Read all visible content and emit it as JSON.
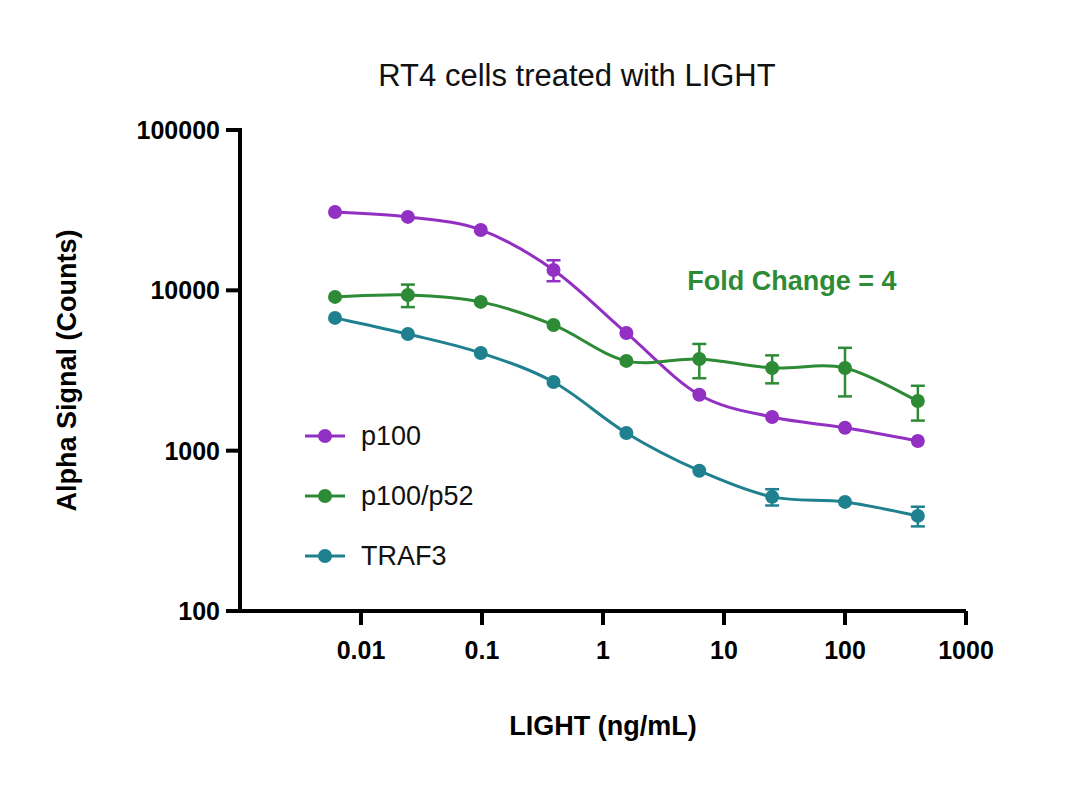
{
  "chart_data": {
    "type": "line",
    "title": "RT4 cells treated with LIGHT",
    "x_label": "LIGHT (ng/mL)",
    "y_label": "Alpha Signal (Counts)",
    "annotations": [
      {
        "text": "Fold Change = 4",
        "color": "#2e8b35"
      }
    ],
    "x": [
      0.0061,
      0.0244,
      0.0977,
      0.39,
      1.56,
      6.25,
      25,
      100,
      400
    ],
    "series": [
      {
        "name": "p100",
        "color": "#9330c4",
        "marker": "circle",
        "values": [
          30800,
          28700,
          23800,
          13400,
          5420,
          2230,
          1620,
          1390,
          1150
        ],
        "errors": [
          null,
          null,
          null,
          2000,
          null,
          null,
          null,
          null,
          null
        ]
      },
      {
        "name": "p100/p52",
        "color": "#2e8b35",
        "marker": "circle",
        "values": [
          9100,
          9360,
          8470,
          6080,
          3630,
          3730,
          3280,
          3280,
          2040
        ],
        "errors": [
          null,
          1500,
          null,
          null,
          null,
          900,
          650,
          1100,
          500
        ]
      },
      {
        "name": "TRAF3",
        "color": "#1f8190",
        "marker": "circle",
        "values": [
          6730,
          5340,
          4070,
          2680,
          1290,
          750,
          515,
          479,
          392
        ],
        "errors": [
          null,
          null,
          null,
          null,
          null,
          null,
          60,
          null,
          55
        ]
      }
    ],
    "xlim": [
      0.001,
      1000
    ],
    "xticks": [
      0.01,
      0.1,
      1,
      10,
      100,
      1000
    ],
    "ylim": [
      100,
      100000
    ],
    "yticks": [
      100,
      1000,
      10000,
      100000
    ],
    "log": true,
    "grid": false,
    "legend": "lower left"
  }
}
